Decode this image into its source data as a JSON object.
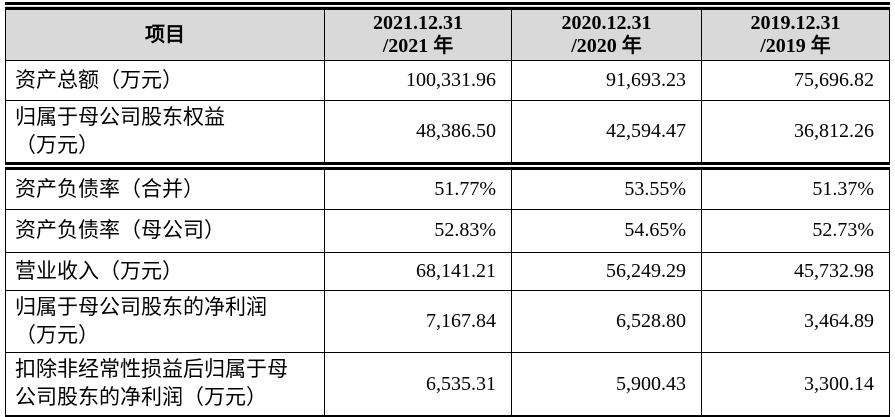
{
  "page": {
    "background": "#ffffff",
    "header_background": "#d9d9d9",
    "border_color": "#000000",
    "text_color": "#000000"
  },
  "table": {
    "header": {
      "columns": [
        {
          "label": "项目"
        },
        {
          "label": "2021.12.31\n/2021 年"
        },
        {
          "label": "2020.12.31\n/2020 年"
        },
        {
          "label": "2019.12.31\n/2019 年"
        }
      ]
    },
    "rows": [
      {
        "label": "资产总额（万元）",
        "values": [
          "100,331.96",
          "91,693.23",
          "75,696.82"
        ]
      },
      {
        "label": "归属于母公司股东权益\n（万元）",
        "values": [
          "48,386.50",
          "42,594.47",
          "36,812.26"
        ]
      },
      {
        "label": "资产负债率（合并）",
        "values": [
          "51.77%",
          "53.55%",
          "51.37%"
        ]
      },
      {
        "label": "资产负债率（母公司）",
        "values": [
          "52.83%",
          "54.65%",
          "52.73%"
        ]
      },
      {
        "label": "营业收入（万元）",
        "values": [
          "68,141.21",
          "56,249.29",
          "45,732.98"
        ]
      },
      {
        "label": "归属于母公司股东的净利润\n（万元）",
        "values": [
          "7,167.84",
          "6,528.80",
          "3,464.89"
        ]
      },
      {
        "label": "扣除非经常性损益后归属于母\n公司股东的净利润（万元）",
        "values": [
          "6,535.31",
          "5,900.43",
          "3,300.14"
        ]
      }
    ]
  }
}
